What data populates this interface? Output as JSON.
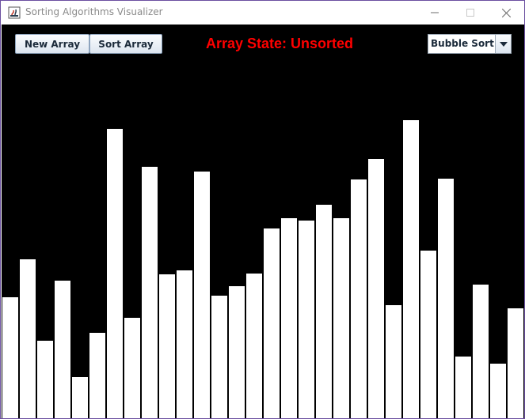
{
  "window": {
    "title": "Sorting Algorithms Visualizer",
    "icon": "java-icon",
    "controls": [
      "minimize-icon",
      "maximize-icon",
      "close-icon"
    ]
  },
  "toolbar": {
    "new_array_label": "New Array",
    "sort_array_label": "Sort Array",
    "status_prefix": "Array State: ",
    "status_value": "Unsorted",
    "status_color": "#ff0000",
    "algorithm_selected": "Bubble Sort"
  },
  "array": {
    "bar_color": "#ffffff",
    "background_color": "#000000",
    "max_value": 500,
    "values": [
      154,
      202,
      99,
      175,
      53,
      109,
      368,
      128,
      320,
      183,
      188,
      314,
      156,
      168,
      184,
      241,
      255,
      252,
      272,
      255,
      304,
      330,
      144,
      379,
      213,
      305,
      79,
      170,
      70,
      140
    ]
  }
}
